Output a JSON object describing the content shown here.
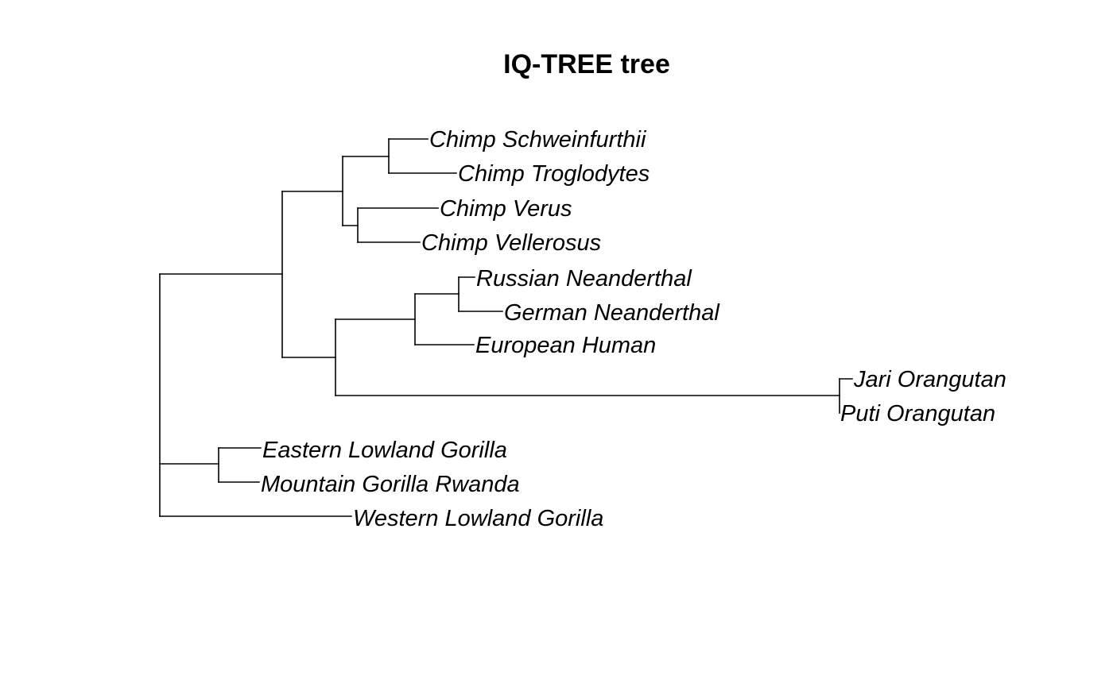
{
  "title": "IQ-TREE tree",
  "tree": {
    "tips": [
      "Chimp Schweinfurthii",
      "Chimp Troglodytes",
      "Chimp Verus",
      "Chimp Vellerosus",
      "Russian Neanderthal",
      "German Neanderthal",
      "European Human",
      "Jari Orangutan",
      "Puti Orangutan",
      "Eastern Lowland Gorilla",
      "Mountain Gorilla Rwanda",
      "Western Lowland Gorilla"
    ]
  }
}
